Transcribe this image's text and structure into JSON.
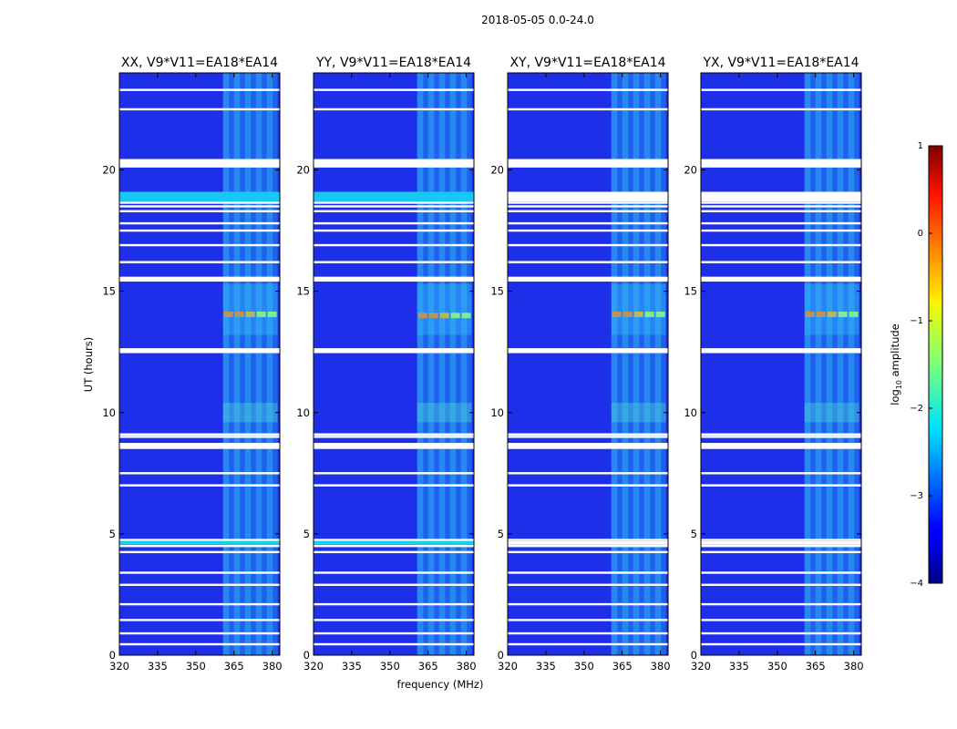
{
  "figure": {
    "suptitle": "2018-05-05 0.0-24.0",
    "xlabel": "frequency (MHz)",
    "ylabel": "UT (hours)"
  },
  "chart_data": {
    "type": "heatmap",
    "title": "2018-05-05 0.0-24.0",
    "xlabel": "frequency (MHz)",
    "ylabel": "UT (hours)",
    "xlim": [
      320,
      383
    ],
    "ylim": [
      0,
      24
    ],
    "xticks": [
      320,
      335,
      350,
      365,
      380
    ],
    "yticks": [
      0,
      5,
      10,
      15,
      20
    ],
    "panels": [
      {
        "title": "XX, V9*V11=EA18*EA14",
        "hot_row_hour": 14.05,
        "rfi_band_MHz": [
          360,
          380
        ]
      },
      {
        "title": "YY, V9*V11=EA18*EA14",
        "hot_row_hour": 14.0,
        "rfi_band_MHz": [
          360,
          380
        ]
      },
      {
        "title": "XY, V9*V11=EA18*EA14",
        "hot_row_hour": 14.05,
        "rfi_band_MHz": [
          360,
          380
        ]
      },
      {
        "title": "YX, V9*V11=EA18*EA14",
        "hot_row_hour": 14.05,
        "rfi_band_MHz": [
          360,
          380
        ]
      }
    ],
    "flagged_hours": [
      0.45,
      0.9,
      1.45,
      2.1,
      2.9,
      3.4,
      4.25,
      4.5,
      4.75,
      7.0,
      7.5,
      8.6,
      9.0,
      9.1,
      12.5,
      12.6,
      15.5,
      16.2,
      16.9,
      17.5,
      17.8,
      18.3,
      18.5,
      18.65,
      20.3,
      22.5,
      23.3
    ],
    "colorbar": {
      "label": "log10 amplitude",
      "label_main": "log",
      "label_sub": "10",
      "label_rest": " amplitude",
      "range": [
        -4,
        1
      ],
      "ticks": [
        "1",
        "0",
        "−1",
        "−2",
        "−3",
        "−4"
      ],
      "colormap": "jet"
    }
  }
}
